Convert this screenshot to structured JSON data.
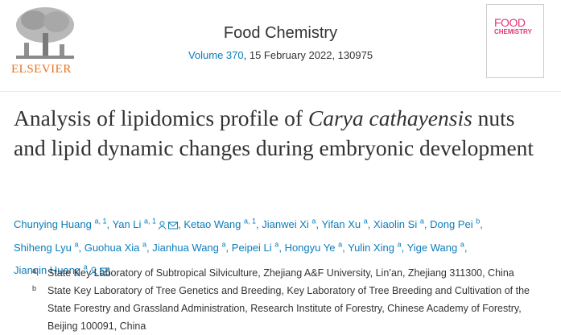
{
  "header": {
    "journal": "Food Chemistry",
    "volume": "Volume 370",
    "issue_info": ", 15 February 2022, 130975",
    "publisher": "ELSEVIER",
    "cover_title_1": "FOOD",
    "cover_title_2": "CHEMISTRY"
  },
  "title": {
    "before": "Analysis of lipidomics profile of ",
    "italic": "Carya cathayensis",
    "after": " nuts and lipid dynamic changes during embryonic development"
  },
  "separator": ",",
  "authors": [
    {
      "name": "Chunying Huang",
      "sup": "a, 1",
      "corresponding": false
    },
    {
      "name": "Yan Li",
      "sup": "a, 1",
      "corresponding": true
    },
    {
      "name": "Ketao Wang",
      "sup": "a, 1",
      "corresponding": false
    },
    {
      "name": "Jianwei Xi",
      "sup": "a",
      "corresponding": false
    },
    {
      "name": "Yifan Xu",
      "sup": "a",
      "corresponding": false
    },
    {
      "name": "Xiaolin Si",
      "sup": "a",
      "corresponding": false
    },
    {
      "name": "Dong Pei",
      "sup": "b",
      "corresponding": false
    },
    {
      "name": "Shiheng Lyu",
      "sup": "a",
      "corresponding": false
    },
    {
      "name": "Guohua Xia",
      "sup": "a",
      "corresponding": false
    },
    {
      "name": "Jianhua Wang",
      "sup": "a",
      "corresponding": false
    },
    {
      "name": "Peipei Li",
      "sup": "a",
      "corresponding": false
    },
    {
      "name": "Hongyu Ye",
      "sup": "a",
      "corresponding": false
    },
    {
      "name": "Yulin Xing",
      "sup": "a",
      "corresponding": false
    },
    {
      "name": "Yige Wang",
      "sup": "a",
      "corresponding": false
    },
    {
      "name": "Jianqin Huang",
      "sup": "a",
      "corresponding": true
    }
  ],
  "affiliations": [
    {
      "label": "a",
      "text": "State Key Laboratory of Subtropical Silviculture, Zhejiang A&F University, Lin’an, Zhejiang 311300, China"
    },
    {
      "label": "b",
      "text": "State Key Laboratory of Tree Genetics and Breeding, Key Laboratory of Tree Breeding and Cultivation of the State Forestry and Grassland Administration, Research Institute of Forestry, Chinese Academy of Forestry, Beijing 100091, China"
    }
  ]
}
